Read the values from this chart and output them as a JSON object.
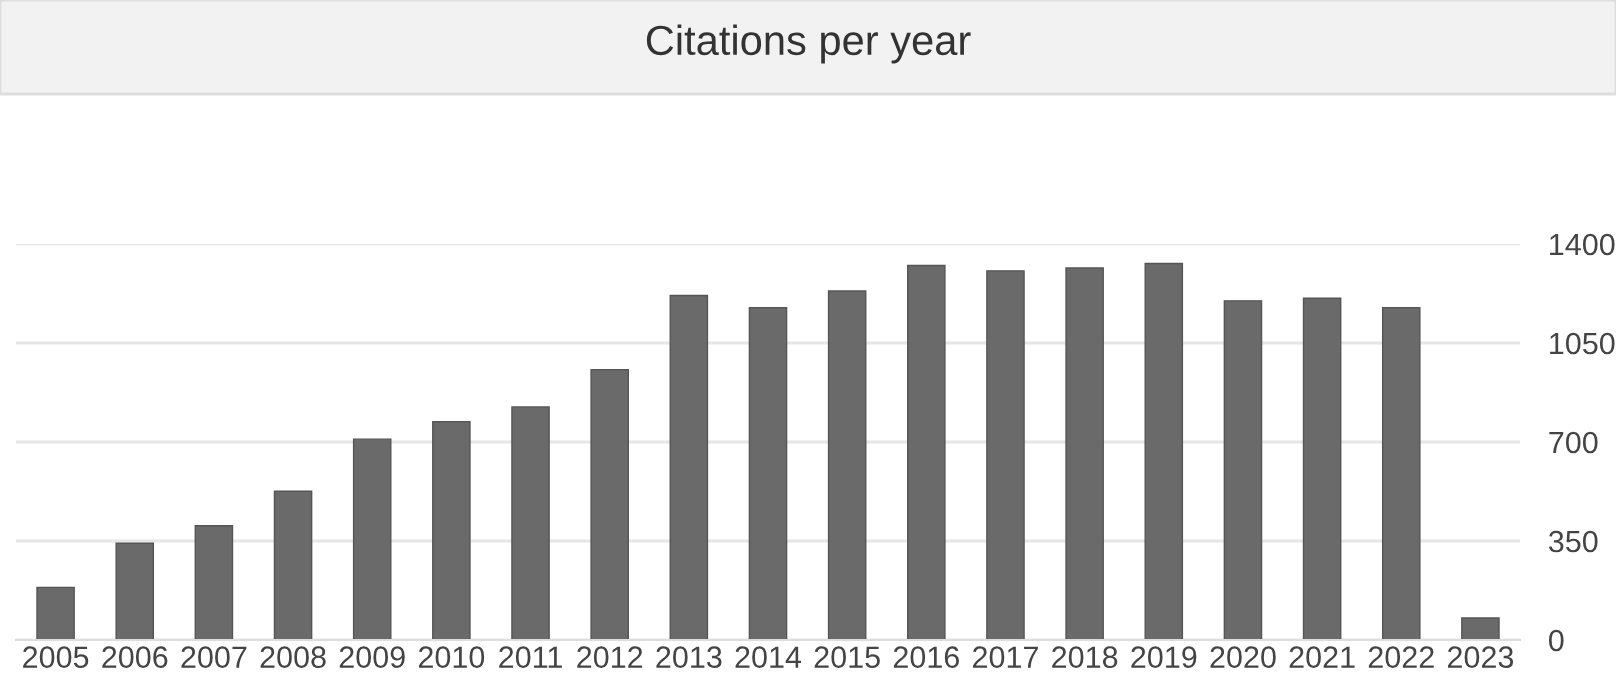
{
  "chart_data": {
    "type": "bar",
    "title": "Citations per year",
    "categories": [
      "2005",
      "2006",
      "2007",
      "2008",
      "2009",
      "2010",
      "2011",
      "2012",
      "2013",
      "2014",
      "2015",
      "2016",
      "2017",
      "2018",
      "2019",
      "2020",
      "2021",
      "2022",
      "2023"
    ],
    "values": [
      186,
      342,
      404,
      526,
      710,
      772,
      824,
      956,
      1218,
      1175,
      1234,
      1324,
      1305,
      1315,
      1331,
      1199,
      1208,
      1175,
      78
    ],
    "color": "#6a6a6a",
    "ylim": [
      0,
      1400
    ],
    "yticks": [
      0,
      350,
      700,
      1050,
      1400
    ],
    "grid": "y",
    "legend": false
  }
}
